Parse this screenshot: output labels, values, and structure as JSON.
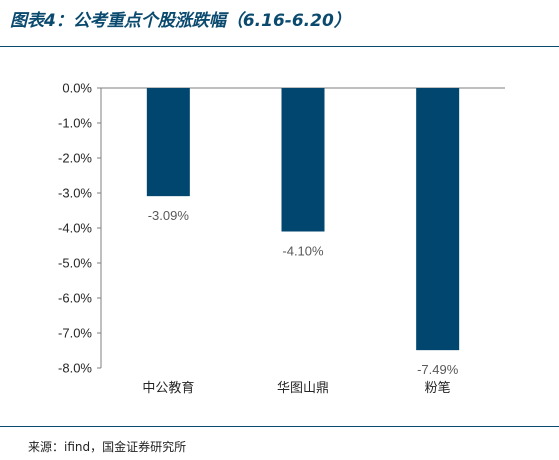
{
  "figure": {
    "title": "图表4：公考重点个股涨跌幅（6.16-6.20）",
    "source": "来源：ifind，国金证券研究所"
  },
  "colors": {
    "bar": "#00466e",
    "title": "#0b4a6f",
    "label": "#595959",
    "axis": "#7f7f7f"
  },
  "chart_data": {
    "type": "bar",
    "categories": [
      "中公教育",
      "华图山鼎",
      "粉笔"
    ],
    "values": [
      -3.09,
      -4.1,
      -7.49
    ],
    "value_labels": [
      "-3.09%",
      "-4.10%",
      "-7.49%"
    ],
    "title": "",
    "xlabel": "",
    "ylabel": "",
    "ylim": [
      -8.0,
      0.0
    ],
    "yticks": [
      0,
      -1,
      -2,
      -3,
      -4,
      -5,
      -6,
      -7,
      -8
    ],
    "ytick_labels": [
      "0.0%",
      "-1.0%",
      "-2.0%",
      "-3.0%",
      "-4.0%",
      "-5.0%",
      "-6.0%",
      "-7.0%",
      "-8.0%"
    ],
    "grid": false,
    "legend": "none"
  }
}
